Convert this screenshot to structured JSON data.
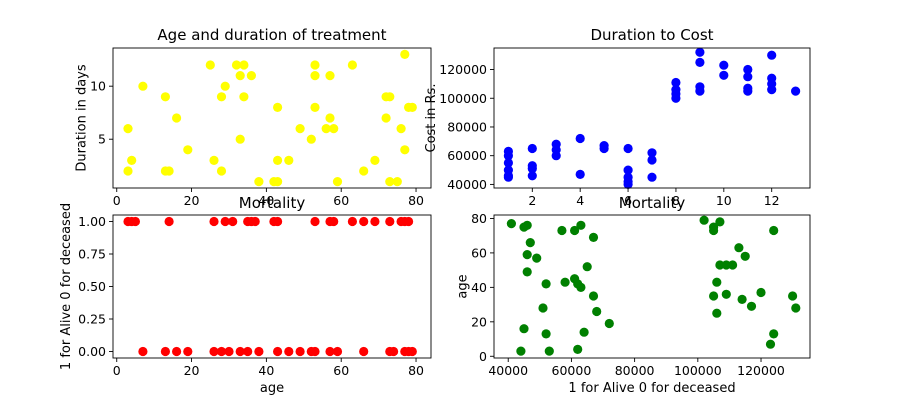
{
  "chart_data": [
    {
      "type": "scatter",
      "title": "Age and duration of treatment",
      "xlabel": "",
      "ylabel": "Duration in days",
      "xlim": [
        -1,
        84
      ],
      "ylim": [
        0.4,
        13.6
      ],
      "xticks": [
        0,
        20,
        40,
        60,
        80
      ],
      "yticks": [
        5,
        10
      ],
      "color": "#ffff00",
      "points": [
        [
          3,
          6
        ],
        [
          3,
          2
        ],
        [
          4,
          3
        ],
        [
          7,
          10
        ],
        [
          13,
          9
        ],
        [
          13,
          2
        ],
        [
          14,
          2
        ],
        [
          16,
          7
        ],
        [
          19,
          4
        ],
        [
          25,
          12
        ],
        [
          26,
          3
        ],
        [
          28,
          2
        ],
        [
          28,
          9
        ],
        [
          29,
          10
        ],
        [
          32,
          12
        ],
        [
          33,
          11
        ],
        [
          33,
          5
        ],
        [
          34,
          12
        ],
        [
          34,
          9
        ],
        [
          36,
          11
        ],
        [
          38,
          1
        ],
        [
          42,
          1
        ],
        [
          43,
          1
        ],
        [
          43,
          3
        ],
        [
          43,
          8
        ],
        [
          46,
          3
        ],
        [
          49,
          6
        ],
        [
          52,
          5
        ],
        [
          53,
          12
        ],
        [
          53,
          11
        ],
        [
          53,
          8
        ],
        [
          56,
          6
        ],
        [
          57,
          7
        ],
        [
          57,
          11
        ],
        [
          58,
          6
        ],
        [
          59,
          1
        ],
        [
          63,
          12
        ],
        [
          66,
          2
        ],
        [
          69,
          3
        ],
        [
          72,
          7
        ],
        [
          72,
          9
        ],
        [
          73,
          1
        ],
        [
          73,
          9
        ],
        [
          75,
          1
        ],
        [
          76,
          6
        ],
        [
          77,
          13
        ],
        [
          77,
          4
        ],
        [
          78,
          8
        ],
        [
          79,
          8
        ]
      ]
    },
    {
      "type": "scatter",
      "title": "Duration to Cost",
      "xlabel": "",
      "ylabel": "Cost in Rs.",
      "xlim": [
        0.4,
        13.6
      ],
      "ylim": [
        37500,
        135000
      ],
      "xticks": [
        2,
        4,
        6,
        8,
        10,
        12
      ],
      "yticks": [
        40000,
        60000,
        80000,
        100000,
        120000
      ],
      "color": "#0000ff",
      "points": [
        [
          1,
          63000
        ],
        [
          1,
          60000
        ],
        [
          1,
          55000
        ],
        [
          1,
          50000
        ],
        [
          1,
          46000
        ],
        [
          1,
          45000
        ],
        [
          2,
          65000
        ],
        [
          2,
          53000
        ],
        [
          2,
          51000
        ],
        [
          2,
          46000
        ],
        [
          3,
          68000
        ],
        [
          3,
          64000
        ],
        [
          3,
          60000
        ],
        [
          4,
          72000
        ],
        [
          4,
          47000
        ],
        [
          5,
          67000
        ],
        [
          5,
          65000
        ],
        [
          6,
          65000
        ],
        [
          6,
          50000
        ],
        [
          6,
          45000
        ],
        [
          6,
          42000
        ],
        [
          6,
          40000
        ],
        [
          7,
          62000
        ],
        [
          7,
          57000
        ],
        [
          7,
          45000
        ],
        [
          8,
          111000
        ],
        [
          8,
          106000
        ],
        [
          8,
          103000
        ],
        [
          8,
          100000
        ],
        [
          9,
          132000
        ],
        [
          9,
          125000
        ],
        [
          9,
          108000
        ],
        [
          9,
          105000
        ],
        [
          10,
          123000
        ],
        [
          10,
          116000
        ],
        [
          11,
          120000
        ],
        [
          11,
          115000
        ],
        [
          11,
          107000
        ],
        [
          11,
          105000
        ],
        [
          12,
          130000
        ],
        [
          12,
          114000
        ],
        [
          12,
          110000
        ],
        [
          12,
          106000
        ],
        [
          13,
          105000
        ]
      ]
    },
    {
      "type": "scatter",
      "title": "Mortality",
      "xlabel": "age",
      "ylabel": "1 for Alive 0 for deceased",
      "xlim": [
        -1,
        84
      ],
      "ylim": [
        -0.05,
        1.05
      ],
      "xticks": [
        0,
        20,
        40,
        60,
        80
      ],
      "yticks": [
        0.0,
        0.25,
        0.5,
        0.75,
        1.0
      ],
      "ytick_labels": [
        "0.00",
        "0.25",
        "0.50",
        "0.75",
        "1.00"
      ],
      "color": "#ff0000",
      "points": [
        [
          3,
          1
        ],
        [
          4,
          1
        ],
        [
          5,
          1
        ],
        [
          14,
          1
        ],
        [
          26,
          1
        ],
        [
          29,
          1
        ],
        [
          31,
          1
        ],
        [
          35,
          1
        ],
        [
          36,
          1
        ],
        [
          37,
          1
        ],
        [
          42,
          1
        ],
        [
          43,
          1
        ],
        [
          53,
          1
        ],
        [
          57,
          1
        ],
        [
          58,
          1
        ],
        [
          63,
          1
        ],
        [
          66,
          1
        ],
        [
          69,
          1
        ],
        [
          73,
          1
        ],
        [
          76,
          1
        ],
        [
          77,
          1
        ],
        [
          78,
          1
        ],
        [
          7,
          0
        ],
        [
          13,
          0
        ],
        [
          16,
          0
        ],
        [
          19,
          0
        ],
        [
          26,
          0
        ],
        [
          28,
          0
        ],
        [
          30,
          0
        ],
        [
          33,
          0
        ],
        [
          35,
          0
        ],
        [
          38,
          0
        ],
        [
          43,
          0
        ],
        [
          46,
          0
        ],
        [
          49,
          0
        ],
        [
          52,
          0
        ],
        [
          53,
          0
        ],
        [
          57,
          0
        ],
        [
          59,
          0
        ],
        [
          66,
          0
        ],
        [
          73,
          0
        ],
        [
          74,
          0
        ],
        [
          77,
          0
        ],
        [
          78,
          0
        ],
        [
          79,
          0
        ]
      ]
    },
    {
      "type": "scatter",
      "title": "Mortality",
      "xlabel": "1 for Alive 0 for deceased",
      "ylabel": "age",
      "xlim": [
        35500,
        135500
      ],
      "ylim": [
        -1,
        82
      ],
      "xticks": [
        40000,
        60000,
        80000,
        100000,
        120000
      ],
      "yticks": [
        0,
        20,
        40,
        60,
        80
      ],
      "color": "#008000",
      "points": [
        [
          41000,
          77
        ],
        [
          44000,
          3
        ],
        [
          45000,
          16
        ],
        [
          45000,
          75
        ],
        [
          46000,
          59
        ],
        [
          46000,
          49
        ],
        [
          46000,
          76
        ],
        [
          47000,
          66
        ],
        [
          49000,
          57
        ],
        [
          51000,
          28
        ],
        [
          52000,
          13
        ],
        [
          52000,
          42
        ],
        [
          53000,
          3
        ],
        [
          57000,
          73
        ],
        [
          58000,
          43
        ],
        [
          61000,
          45
        ],
        [
          61000,
          73
        ],
        [
          62000,
          42
        ],
        [
          62000,
          4
        ],
        [
          63000,
          40
        ],
        [
          63000,
          76
        ],
        [
          64000,
          14
        ],
        [
          65000,
          52
        ],
        [
          67000,
          69
        ],
        [
          67000,
          35
        ],
        [
          68000,
          26
        ],
        [
          72000,
          19
        ],
        [
          102000,
          79
        ],
        [
          105000,
          75
        ],
        [
          105000,
          35
        ],
        [
          105000,
          73
        ],
        [
          106000,
          25
        ],
        [
          106000,
          43
        ],
        [
          107000,
          78
        ],
        [
          107000,
          53
        ],
        [
          109000,
          53
        ],
        [
          109000,
          36
        ],
        [
          111000,
          53
        ],
        [
          113000,
          63
        ],
        [
          114000,
          33
        ],
        [
          115000,
          58
        ],
        [
          117000,
          29
        ],
        [
          120000,
          37
        ],
        [
          123000,
          7
        ],
        [
          124000,
          13
        ],
        [
          124000,
          73
        ],
        [
          130000,
          35
        ],
        [
          131000,
          28
        ]
      ]
    }
  ]
}
